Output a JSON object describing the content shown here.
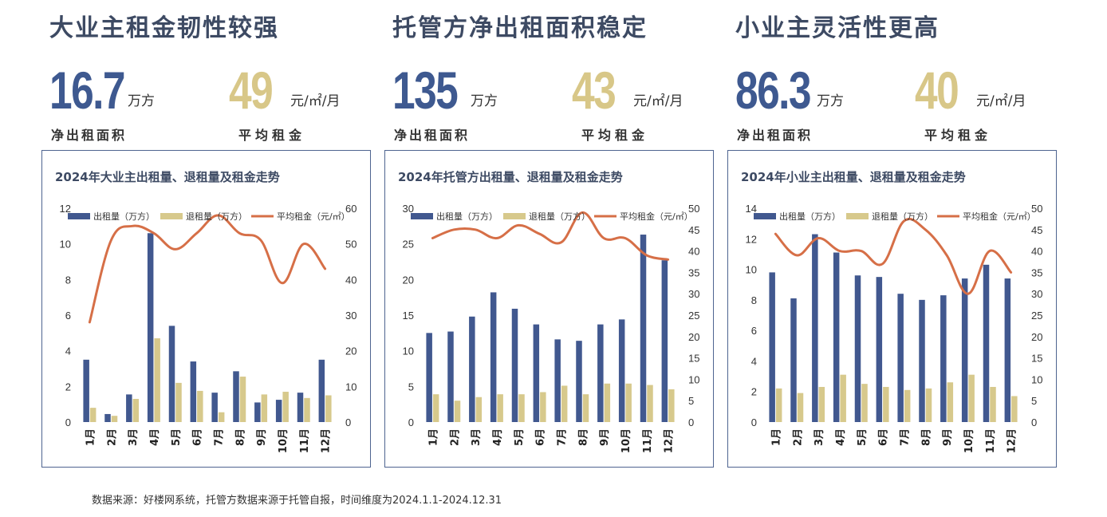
{
  "footnote": "数据来源：好楼网系统，托管方数据来源于托管自报，时间维度为2024.1.1-2024.12.31",
  "colors": {
    "leased": "#41588f",
    "returned": "#d7c98c",
    "rent": "#d66f47",
    "headline": "#3d4a63",
    "border": "#4e6490"
  },
  "sections": [
    {
      "headline": "大业主租金韧性较强",
      "net_area_value": "16.7",
      "net_area_unit": "万方",
      "net_area_label": "净出租面积",
      "avg_rent_value": "49",
      "avg_rent_unit": "元/㎡/月",
      "avg_rent_label": "平均租金"
    },
    {
      "headline": "托管方净出租面积稳定",
      "net_area_value": "135",
      "net_area_unit": "万方",
      "net_area_label": "净出租面积",
      "avg_rent_value": "43",
      "avg_rent_unit": "元/㎡/月",
      "avg_rent_label": "平均租金"
    },
    {
      "headline": "小业主灵活性更高",
      "net_area_value": "86.3",
      "net_area_unit": "万方",
      "net_area_label": "净出租面积",
      "avg_rent_value": "40",
      "avg_rent_unit": "元/㎡/月",
      "avg_rent_label": "平均租金"
    }
  ],
  "chart_data": [
    {
      "type": "bar",
      "title": "2024年大业主出租量、退租量及租金走势",
      "categories": [
        "1月",
        "2月",
        "3月",
        "4月",
        "5月",
        "6月",
        "7月",
        "8月",
        "9月",
        "10月",
        "11月",
        "12月"
      ],
      "series": [
        {
          "name": "出租量（万方）",
          "axis": "left",
          "type": "bar",
          "values": [
            3.5,
            0.45,
            1.55,
            10.6,
            5.4,
            3.4,
            1.65,
            2.85,
            1.1,
            1.25,
            1.65,
            3.5
          ]
        },
        {
          "name": "退租量（万方）",
          "axis": "left",
          "type": "bar",
          "values": [
            0.8,
            0.35,
            1.3,
            4.7,
            2.2,
            1.75,
            0.55,
            2.55,
            1.55,
            1.7,
            1.35,
            1.5
          ]
        },
        {
          "name": "平均租金（元/㎡）",
          "axis": "right",
          "type": "line",
          "values": [
            28,
            51,
            55,
            53,
            48.5,
            53,
            58,
            53,
            51,
            39,
            50,
            43
          ]
        }
      ],
      "ylim_left": [
        0,
        12
      ],
      "yticks_left": [
        "0",
        "2",
        "4",
        "6",
        "8",
        "10",
        "12"
      ],
      "ylim_right": [
        0,
        60
      ],
      "yticks_right": [
        "0",
        "10",
        "20",
        "30",
        "40",
        "50",
        "60"
      ]
    },
    {
      "type": "bar",
      "title": "2024年托管方出租量、退租量及租金走势",
      "categories": [
        "1月",
        "2月",
        "3月",
        "4月",
        "5月",
        "6月",
        "7月",
        "8月",
        "9月",
        "10月",
        "11月",
        "12月"
      ],
      "series": [
        {
          "name": "出租量（万方）",
          "axis": "left",
          "type": "bar",
          "values": [
            12.5,
            12.7,
            14.8,
            18.2,
            15.9,
            13.7,
            11.6,
            11.4,
            13.7,
            14.4,
            26.3,
            22.7
          ]
        },
        {
          "name": "退租量（万方）",
          "axis": "left",
          "type": "bar",
          "values": [
            3.9,
            3.0,
            3.5,
            3.9,
            3.9,
            4.2,
            5.1,
            3.9,
            5.4,
            5.4,
            5.2,
            4.6
          ]
        },
        {
          "name": "平均租金（元/㎡）",
          "axis": "right",
          "type": "line",
          "values": [
            43,
            45,
            45,
            43,
            46,
            44,
            42,
            49,
            43,
            43,
            39,
            38
          ]
        }
      ],
      "ylim_left": [
        0,
        30
      ],
      "yticks_left": [
        "0",
        "5",
        "10",
        "15",
        "20",
        "25",
        "30"
      ],
      "ylim_right": [
        0,
        50
      ],
      "yticks_right": [
        "0",
        "5",
        "10",
        "15",
        "20",
        "25",
        "30",
        "35",
        "40",
        "45",
        "50"
      ]
    },
    {
      "type": "bar",
      "title": "2024年小业主出租量、退租量及租金走势",
      "categories": [
        "1月",
        "2月",
        "3月",
        "4月",
        "5月",
        "6月",
        "7月",
        "8月",
        "9月",
        "10月",
        "11月",
        "12月"
      ],
      "series": [
        {
          "name": "出租量（万方）",
          "axis": "left",
          "type": "bar",
          "values": [
            9.8,
            8.1,
            12.3,
            11.1,
            9.6,
            9.5,
            8.4,
            8.0,
            8.3,
            9.4,
            10.3,
            9.4
          ]
        },
        {
          "name": "退租量（万方）",
          "axis": "left",
          "type": "bar",
          "values": [
            2.2,
            1.9,
            2.3,
            3.1,
            2.5,
            2.3,
            2.1,
            2.2,
            2.6,
            3.1,
            2.3,
            1.7
          ]
        },
        {
          "name": "平均租金（元/㎡）",
          "axis": "right",
          "type": "line",
          "values": [
            44,
            39,
            43,
            40,
            40,
            37,
            47,
            45,
            39,
            30,
            40,
            35
          ]
        }
      ],
      "ylim_left": [
        0,
        14
      ],
      "yticks_left": [
        "0",
        "2",
        "4",
        "6",
        "8",
        "10",
        "12",
        "14"
      ],
      "ylim_right": [
        0,
        50
      ],
      "yticks_right": [
        "0",
        "5",
        "10",
        "15",
        "20",
        "25",
        "30",
        "35",
        "40",
        "45",
        "50"
      ]
    }
  ]
}
